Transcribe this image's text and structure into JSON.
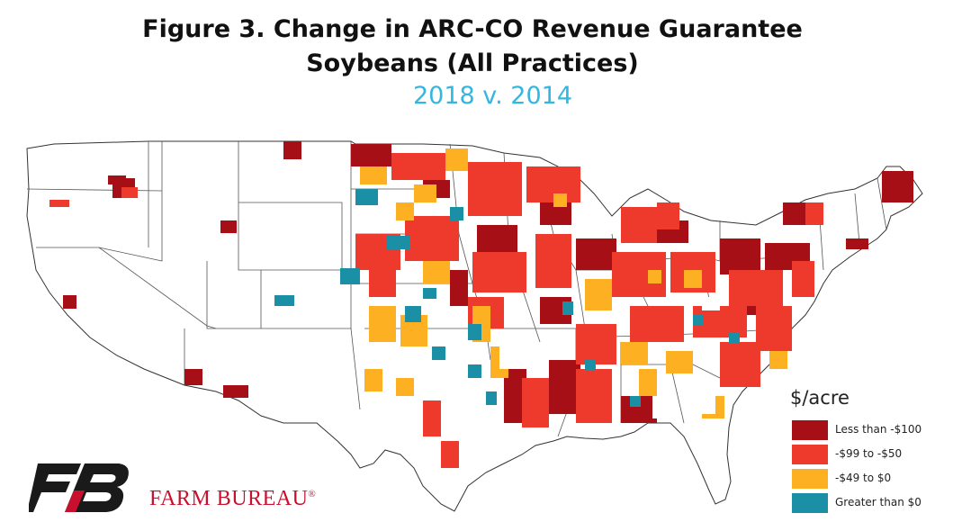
{
  "title_line1": "Figure 3. Change in ARC-CO Revenue Guarantee",
  "title_line2": "Soybeans (All Practices)",
  "subtitle": "2018 v. 2014",
  "legend": {
    "title": "$/acre",
    "items": [
      {
        "label": "Less than -$100",
        "color": "#a50f15"
      },
      {
        "label": "-$99 to -$50",
        "color": "#ee3a2c"
      },
      {
        "label": "-$49 to $0",
        "color": "#fcb022"
      },
      {
        "label": "Greater than $0",
        "color": "#1a8fa6"
      }
    ]
  },
  "brand": {
    "name": "FARM BUREAU",
    "mark": "®"
  }
}
